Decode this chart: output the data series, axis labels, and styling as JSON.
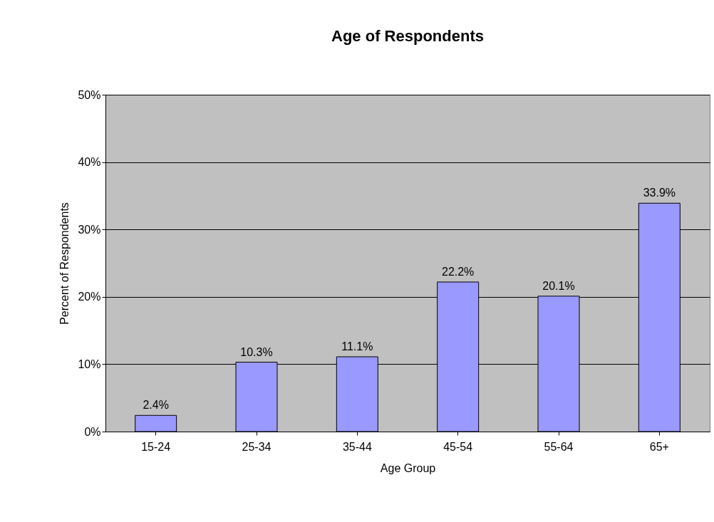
{
  "chart_data": {
    "type": "bar",
    "title": "Age of Respondents",
    "xlabel": "Age Group",
    "ylabel": "Percent of Respondents",
    "categories": [
      "15-24",
      "25-34",
      "35-44",
      "45-54",
      "55-64",
      "65+"
    ],
    "values": [
      2.4,
      10.3,
      11.1,
      22.2,
      20.1,
      33.9
    ],
    "value_labels": [
      "2.4%",
      "10.3%",
      "11.1%",
      "22.2%",
      "20.1%",
      "33.9%"
    ],
    "color": "#9999ff",
    "ylim": [
      0,
      50
    ],
    "yticks": [
      {
        "value": 0,
        "label": "0%"
      },
      {
        "value": 10,
        "label": "10%"
      },
      {
        "value": 20,
        "label": "20%"
      },
      {
        "value": 30,
        "label": "30%"
      },
      {
        "value": 40,
        "label": "40%"
      },
      {
        "value": 50,
        "label": "50%"
      }
    ],
    "grid": "y"
  }
}
